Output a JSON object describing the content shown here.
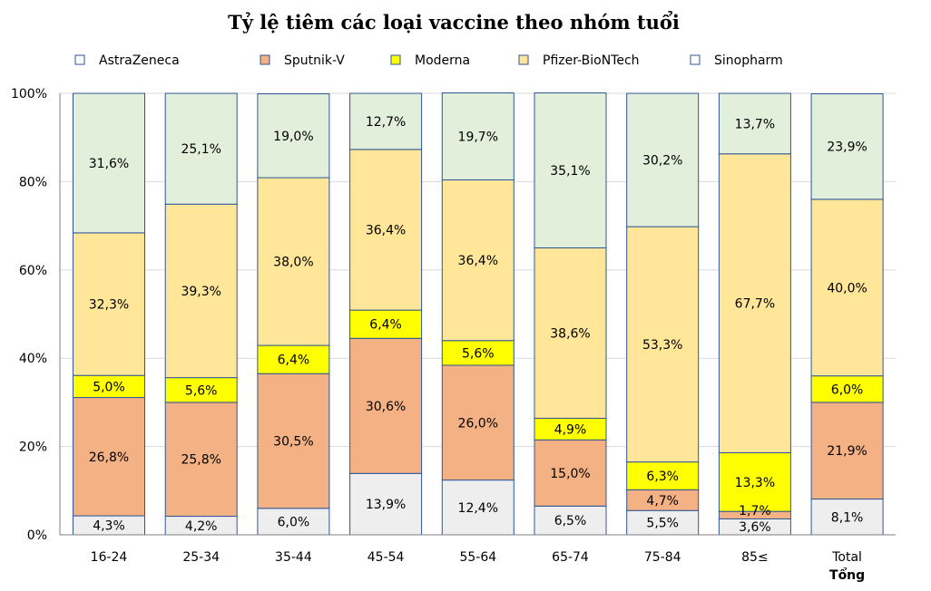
{
  "chart_data": {
    "type": "bar",
    "stacked": true,
    "title": "Tỷ lệ tiêm các loại vaccine theo nhóm tuổi",
    "categories": [
      "16-24",
      "25-34",
      "35-44",
      "45-54",
      "55-64",
      "65-74",
      "75-84",
      "85≤",
      "Total"
    ],
    "category_sublabel": {
      "Total": "Tổng"
    },
    "ylim": [
      0,
      100
    ],
    "yticks": [
      "0%",
      "20%",
      "40%",
      "60%",
      "80%",
      "100%"
    ],
    "grid": true,
    "legend_position": "top",
    "series": [
      {
        "name": "Sinopharm",
        "color": "#eeeeee",
        "values": [
          4.3,
          4.2,
          6.0,
          13.9,
          12.4,
          6.5,
          5.5,
          3.6,
          8.1
        ],
        "labels": [
          "4,3%",
          "4,2%",
          "6,0%",
          "13,9%",
          "12,4%",
          "6,5%",
          "5,5%",
          "3,6%",
          "8,1%"
        ]
      },
      {
        "name": "Sputnik-V",
        "color": "#f4b183",
        "values": [
          26.8,
          25.8,
          30.5,
          30.6,
          26.0,
          15.0,
          4.7,
          1.7,
          21.9
        ],
        "labels": [
          "26,8%",
          "25,8%",
          "30,5%",
          "30,6%",
          "26,0%",
          "15,0%",
          "4,7%",
          "1,7%",
          "21,9%"
        ]
      },
      {
        "name": "Moderna",
        "color": "#ffff00",
        "values": [
          5.0,
          5.6,
          6.4,
          6.4,
          5.6,
          4.9,
          6.3,
          13.3,
          6.0
        ],
        "labels": [
          "5,0%",
          "5,6%",
          "6,4%",
          "6,4%",
          "5,6%",
          "4,9%",
          "6,3%",
          "13,3%",
          "6,0%"
        ]
      },
      {
        "name": "Pfizer-BioNTech",
        "color": "#ffe699",
        "values": [
          32.3,
          39.3,
          38.0,
          36.4,
          36.4,
          38.6,
          53.3,
          67.7,
          40.0
        ],
        "labels": [
          "32,3%",
          "39,3%",
          "38,0%",
          "36,4%",
          "36,4%",
          "38,6%",
          "53,3%",
          "67,7%",
          "40,0%"
        ]
      },
      {
        "name": "AstraZeneca",
        "color": "#e2efda",
        "values": [
          31.6,
          25.1,
          19.0,
          12.7,
          19.7,
          35.1,
          30.2,
          13.7,
          23.9
        ],
        "labels": [
          "31,6%",
          "25,1%",
          "19,0%",
          "12,7%",
          "19,7%",
          "35,1%",
          "30,2%",
          "13,7%",
          "23,9%"
        ]
      }
    ],
    "legend": [
      {
        "name": "AstraZeneca",
        "swatch": "#ffffff"
      },
      {
        "name": "Sputnik-V",
        "swatch": "#f4b183"
      },
      {
        "name": "Moderna",
        "swatch": "#ffff00"
      },
      {
        "name": "Pfizer-BioNTech",
        "swatch": "#ffe699"
      },
      {
        "name": "Sinopharm",
        "swatch": "#ffffff"
      }
    ],
    "colors": {
      "bar_border": "#2f5597",
      "grid": "#d9d9d9",
      "axis": "#7f7f7f"
    }
  }
}
